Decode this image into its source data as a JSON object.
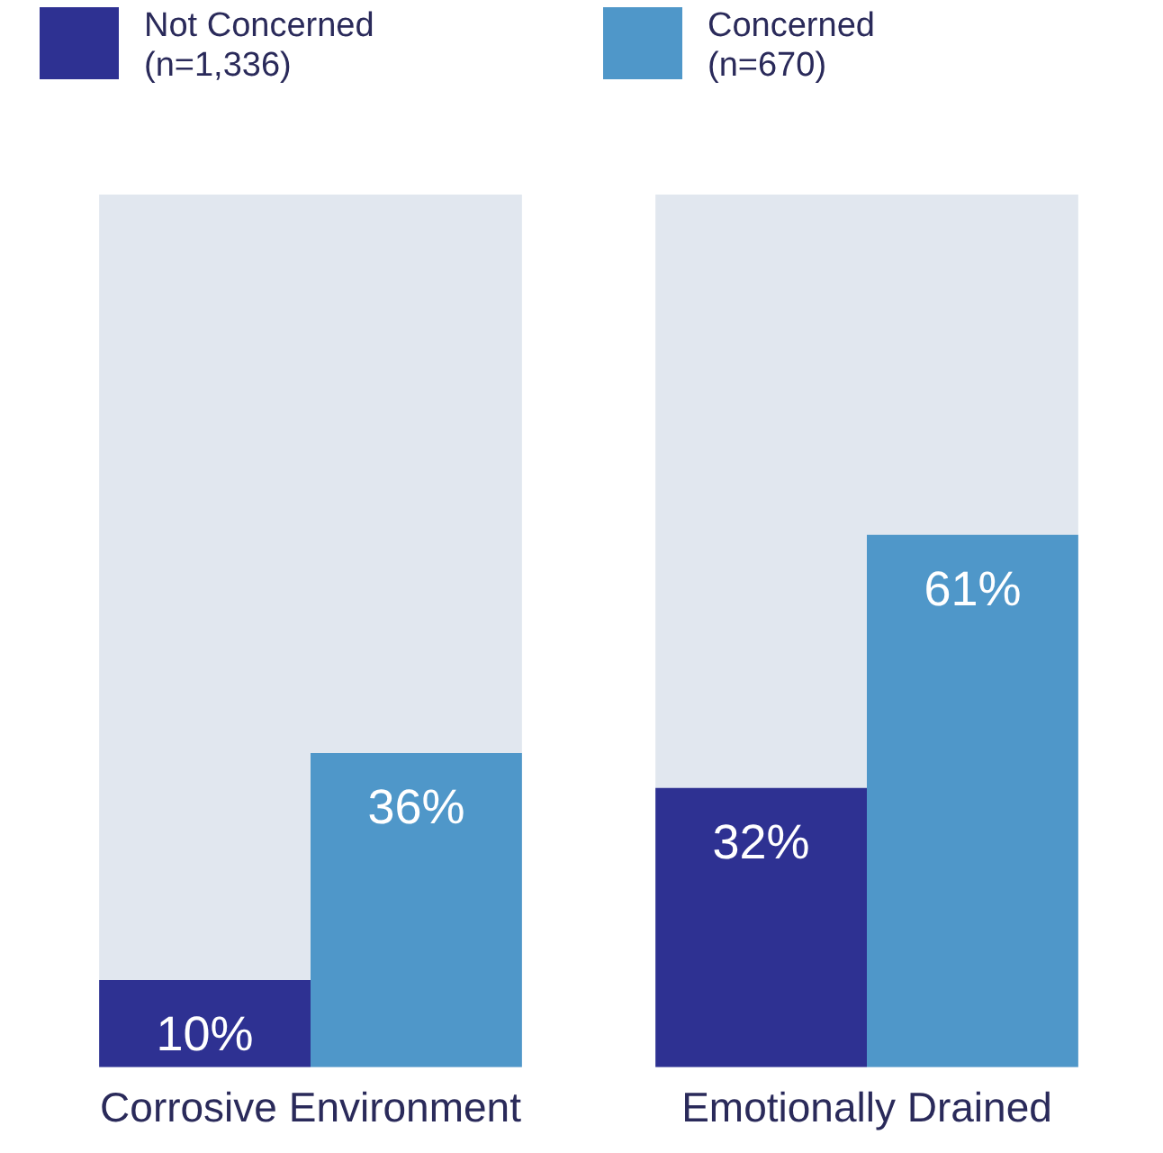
{
  "chart_data": {
    "type": "bar",
    "categories": [
      "Corrosive Environment",
      "Emotionally Drained"
    ],
    "series": [
      {
        "color": "#e1e7ef",
        "values": [
          100,
          100
        ]
      },
      {
        "name": "Not Concerned\n(n=1,336)",
        "color": "#2e3192",
        "values": [
          10,
          32
        ],
        "value_labels": [
          "10%",
          "32%"
        ]
      },
      {
        "name": "Concerned\n(n=670)",
        "color": "#4f97c9",
        "values": [
          36,
          61
        ],
        "value_labels": [
          "36%",
          "61%"
        ]
      }
    ],
    "ylim": [
      0,
      100
    ],
    "tick_labels": "x",
    "grid": false,
    "legend": "top left"
  }
}
